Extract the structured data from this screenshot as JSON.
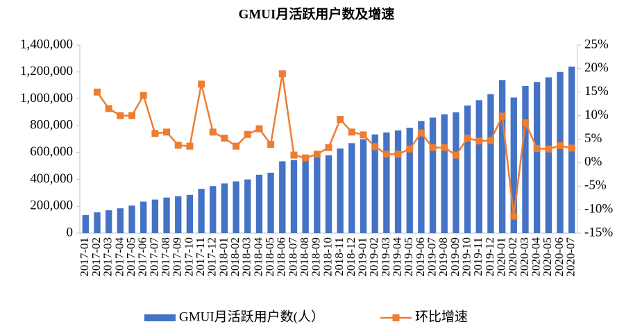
{
  "chart_data": {
    "type": "bar_line",
    "title": "GMUI月活跃用户数及增速",
    "categories": [
      "2017-01",
      "2017-02",
      "2017-03",
      "2017-04",
      "2017-05",
      "2017-06",
      "2017-07",
      "2017-08",
      "2017-09",
      "2017-10",
      "2017-11",
      "2017-12",
      "2018-01",
      "2018-02",
      "2018-03",
      "2018-04",
      "2018-05",
      "2018-06",
      "2018-07",
      "2018-08",
      "2018-09",
      "2018-10",
      "2018-11",
      "2018-12",
      "2019-01",
      "2019-02",
      "2019-03",
      "2019-04",
      "2019-05",
      "2019-06",
      "2019-07",
      "2019-08",
      "2019-09",
      "2019-10",
      "2019-11",
      "2019-12",
      "2020-01",
      "2020-02",
      "2020-03",
      "2020-04",
      "2020-05",
      "2020-06",
      "2020-07"
    ],
    "series": [
      {
        "name": "GMUI月活跃用户数(人）",
        "color": "#4472c4",
        "type": "bar",
        "values": [
          135000,
          155000,
          170000,
          185000,
          205000,
          235000,
          250000,
          265000,
          275000,
          285000,
          330000,
          350000,
          370000,
          385000,
          400000,
          435000,
          450000,
          535000,
          545000,
          555000,
          565000,
          580000,
          630000,
          670000,
          700000,
          735000,
          750000,
          765000,
          785000,
          835000,
          860000,
          885000,
          900000,
          950000,
          990000,
          1035000,
          1140000,
          1010000,
          1095000,
          1125000,
          1160000,
          1200000,
          1240000
        ]
      },
      {
        "name": "环比增速",
        "color": "#ed7d31",
        "type": "line",
        "axis": "y2",
        "values": [
          null,
          15,
          11.5,
          10,
          10,
          14.3,
          6.2,
          6.5,
          3.7,
          3.5,
          16.7,
          6.5,
          5.2,
          3.5,
          6,
          7.2,
          3.9,
          18.9,
          1.6,
          1,
          1.8,
          3.2,
          9.2,
          6.5,
          5.9,
          3.4,
          1.8,
          1.8,
          2.9,
          6.3,
          3.2,
          3.2,
          1.6,
          5.2,
          4.6,
          4.7,
          9.9,
          -11.4,
          8.5,
          3,
          2.9,
          3.6,
          3.1
        ]
      }
    ],
    "ylim": [
      0,
      1400000
    ],
    "yticks": [
      0,
      {
        "value": 200000,
        "label": "200,000"
      },
      {
        "value": 400000,
        "label": "400,000"
      },
      {
        "value": 600000,
        "label": "600,000"
      },
      {
        "value": 800000,
        "label": "800,000"
      },
      {
        "value": 1000000,
        "label": "1,000,000"
      },
      {
        "value": 1200000,
        "label": "1,200,000"
      },
      {
        "value": 1400000,
        "label": "1,400,000"
      }
    ],
    "y2lim": [
      -15,
      25
    ],
    "y2ticks": [
      {
        "value": -15,
        "label": "-15%"
      },
      {
        "value": -10,
        "label": "-10%"
      },
      {
        "value": -5,
        "label": "-5%"
      },
      {
        "value": 0,
        "label": "0%"
      },
      {
        "value": 5,
        "label": "5%"
      },
      {
        "value": 10,
        "label": "10%"
      },
      {
        "value": 15,
        "label": "15%"
      },
      {
        "value": 20,
        "label": "20%"
      },
      {
        "value": 25,
        "label": "25%"
      }
    ],
    "legend": "bottom"
  }
}
